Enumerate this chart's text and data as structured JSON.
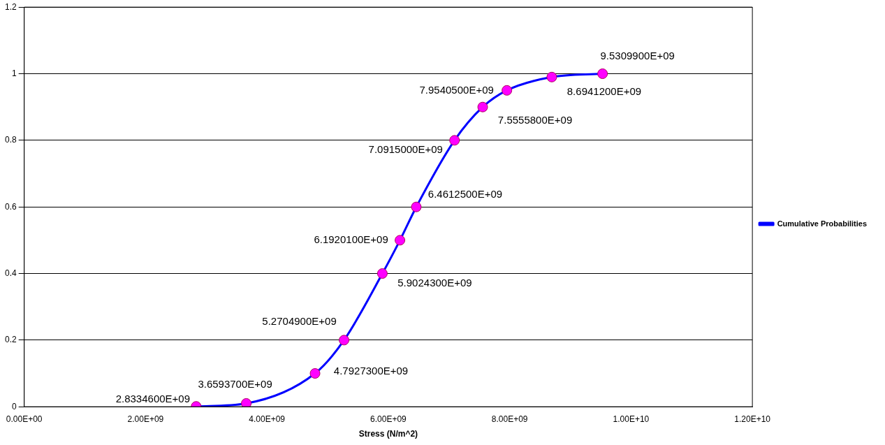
{
  "chart_data": {
    "type": "line",
    "xlabel": "Stress (N/m^2)",
    "x": [
      2833460000.0,
      3659370000.0,
      4792730000.0,
      5270490000.0,
      5902430000.0,
      6192010000.0,
      6461250000.0,
      7091500000.0,
      7555580000.0,
      7954050000.0,
      8694120000.0,
      9530990000.0
    ],
    "series": [
      {
        "name": "Cumulative Probabilities",
        "color": "#0000ff",
        "values": [
          0.001,
          0.01,
          0.1,
          0.2,
          0.4,
          0.5,
          0.6,
          0.8,
          0.9,
          0.95,
          0.99,
          1
        ]
      }
    ],
    "annotations": [
      {
        "text": "2.8334600E+09",
        "x": 2833460000.0,
        "y": 0.001
      },
      {
        "text": "3.6593700E+09",
        "x": 3659370000.0,
        "y": 0.01
      },
      {
        "text": "4.7927300E+09",
        "x": 4792730000.0,
        "y": 0.1
      },
      {
        "text": "5.2704900E+09",
        "x": 5270490000.0,
        "y": 0.2
      },
      {
        "text": "5.9024300E+09",
        "x": 5902430000.0,
        "y": 0.4
      },
      {
        "text": "6.1920100E+09",
        "x": 6192010000.0,
        "y": 0.5
      },
      {
        "text": "6.4612500E+09",
        "x": 6461250000.0,
        "y": 0.6
      },
      {
        "text": "7.0915000E+09",
        "x": 7091500000.0,
        "y": 0.8
      },
      {
        "text": "7.5555800E+09",
        "x": 7555580000.0,
        "y": 0.9
      },
      {
        "text": "7.9540500E+09",
        "x": 7954050000.0,
        "y": 0.95
      },
      {
        "text": "8.6941200E+09",
        "x": 8694120000.0,
        "y": 0.99
      },
      {
        "text": "9.5309900E+09",
        "x": 9530990000.0,
        "y": 1
      }
    ],
    "marker": "circle",
    "line_style": "solid",
    "grid": "y",
    "legend": "right",
    "xlim": [
      0,
      12000000000.0
    ],
    "xticks": [
      {
        "value": 0,
        "label": "0.00E+00"
      },
      {
        "value": 2000000000.0,
        "label": "2.00E+09"
      },
      {
        "value": 4000000000.0,
        "label": "4.00E+09"
      },
      {
        "value": 6000000000.0,
        "label": "6.00E+09"
      },
      {
        "value": 8000000000.0,
        "label": "8.00E+09"
      },
      {
        "value": 10000000000.0,
        "label": "1.00E+10"
      },
      {
        "value": 12000000000.0,
        "label": "1.20E+10"
      }
    ],
    "ylim": [
      0,
      1.2
    ],
    "yticks": [
      0,
      0.2,
      0.4,
      0.6,
      0.8,
      1,
      1.2
    ]
  }
}
